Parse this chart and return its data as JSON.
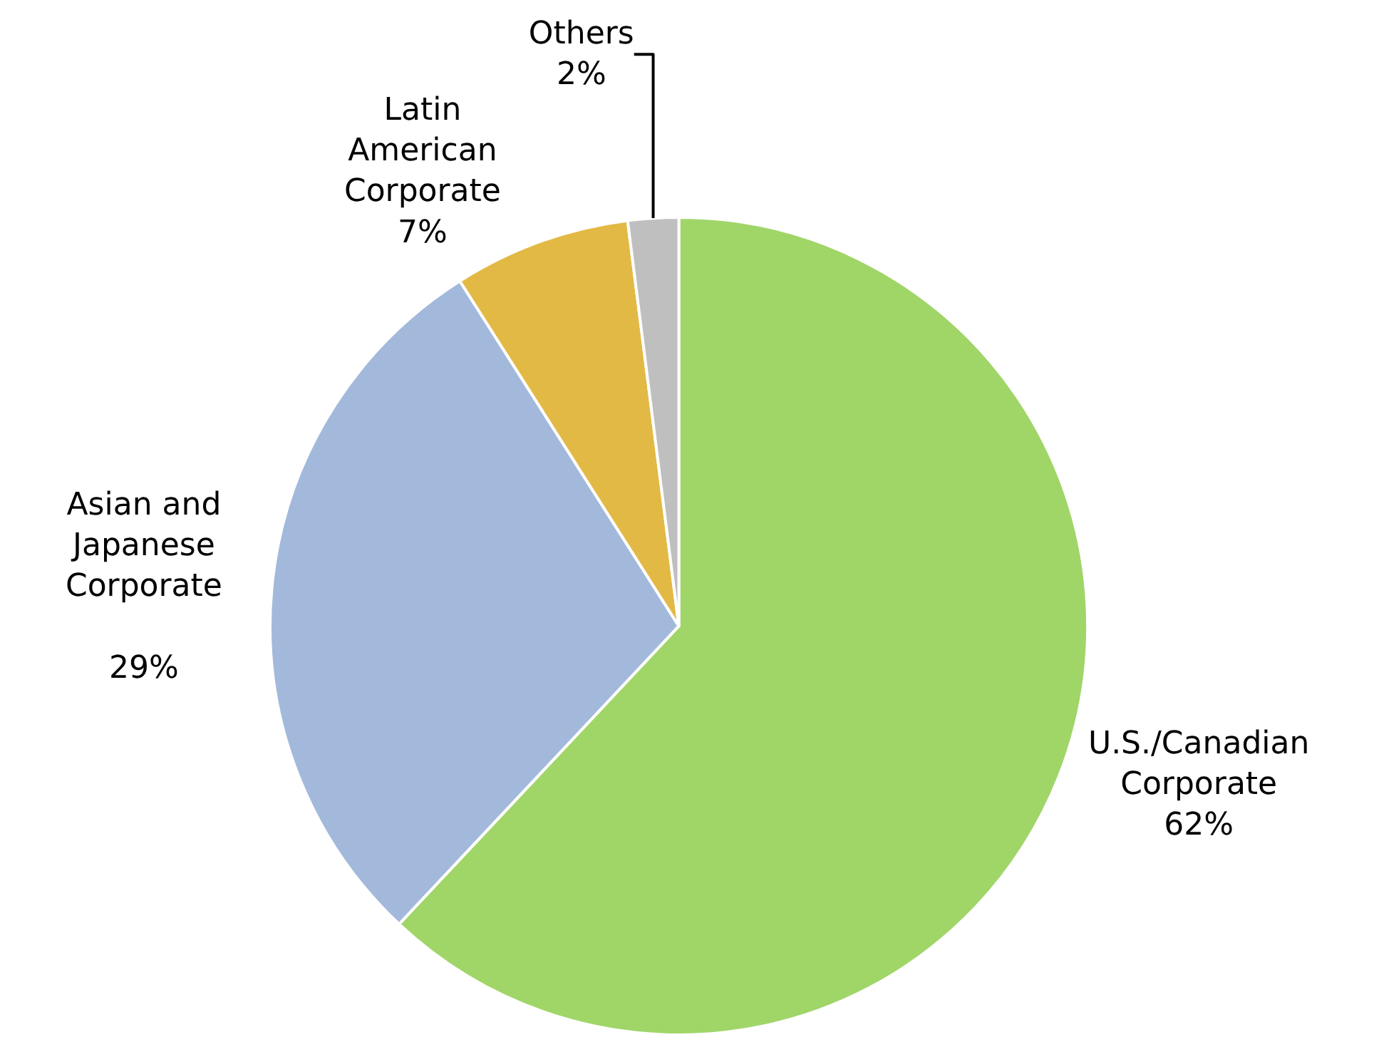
{
  "chart_data": {
    "type": "pie",
    "categories": [
      "U.S./Canadian\nCorporate",
      "Asian and\nJapanese\nCorporate\n",
      "Latin\nAmerican\nCorporate",
      "Others"
    ],
    "values": [
      62,
      29,
      7,
      2
    ],
    "value_labels": [
      "62%",
      "29%",
      "7%",
      "2%"
    ],
    "colors": [
      "#a0d568",
      "#a3b9db",
      "#e3b945",
      "#bfbfbf"
    ],
    "legend": false
  }
}
